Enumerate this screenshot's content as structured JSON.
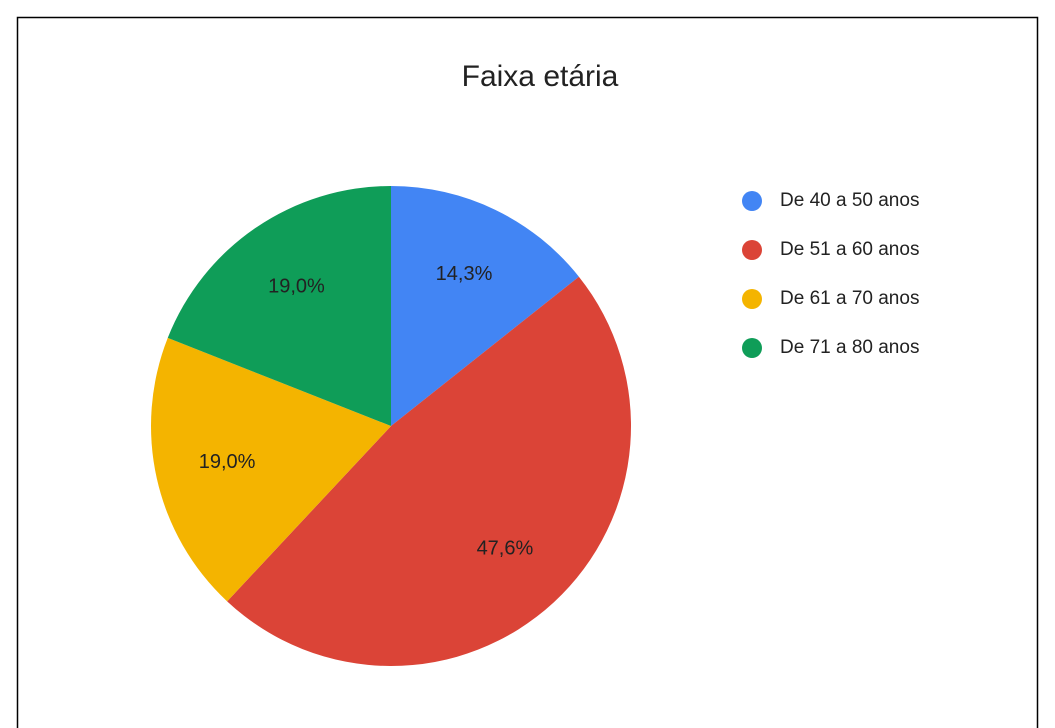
{
  "chart_data": {
    "type": "pie",
    "title": "Faixa etária",
    "categories": [
      "De 40 a 50 anos",
      "De 51 a 60 anos",
      "De 61 a 70 anos",
      "De 71 a 80 anos"
    ],
    "values": [
      14.3,
      47.6,
      19.0,
      19.0
    ],
    "value_labels": [
      "14,3%",
      "47,6%",
      "19,0%",
      "19,0%"
    ],
    "colors": [
      "#4285f4",
      "#db4437",
      "#f4b400",
      "#0f9d58"
    ],
    "legend": "right"
  }
}
